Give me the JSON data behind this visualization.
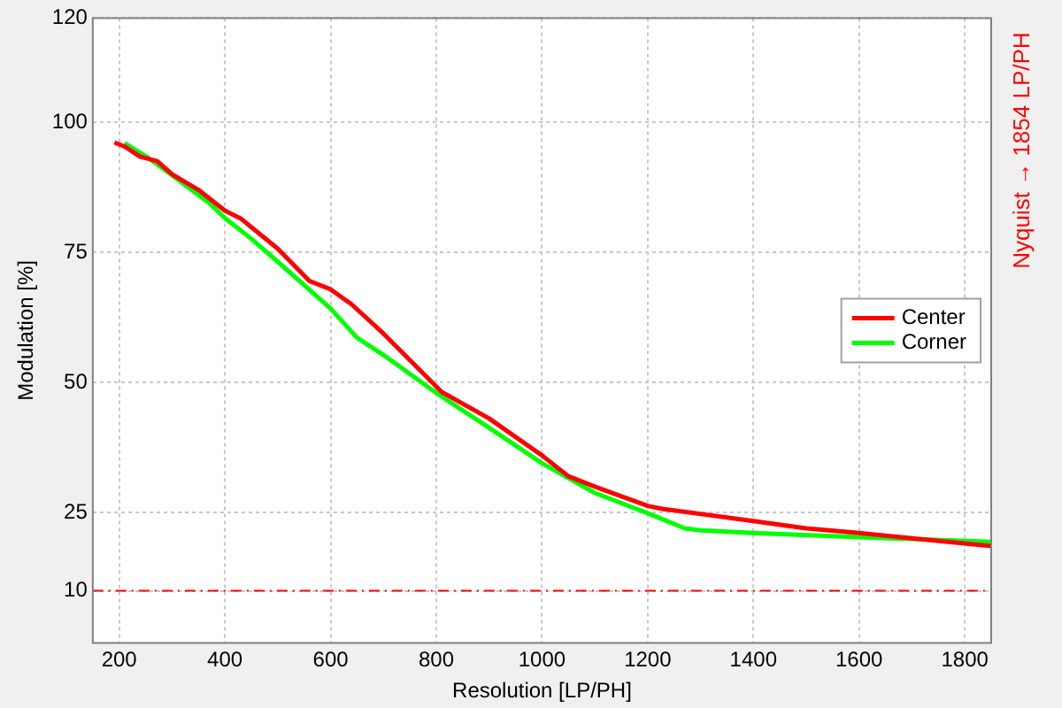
{
  "chart_data": {
    "type": "line",
    "xlabel": "Resolution [LP/PH]",
    "ylabel": "Modulation [%]",
    "xlim": [
      150,
      1850
    ],
    "xticks": [
      200,
      400,
      600,
      800,
      1000,
      1200,
      1400,
      1600,
      1800
    ],
    "ylim": [
      0,
      120
    ],
    "yticks": [
      10,
      25,
      50,
      75,
      100,
      120
    ],
    "grid": true,
    "legend": "right",
    "line_style": "solid",
    "marker": "none",
    "ref_lines": [
      {
        "axis": "y",
        "value": 10,
        "color": "#ff0000",
        "line_style": "dashed"
      }
    ],
    "annotations": [
      "Nyquist → 1854 LP/PH"
    ],
    "series": [
      {
        "name": "Center",
        "color": "#ff0000",
        "x": [
          191,
          211,
          239,
          272,
          300,
          350,
          400,
          430,
          500,
          560,
          600,
          640,
          700,
          810,
          900,
          1000,
          1050,
          1100,
          1200,
          1230,
          1400,
          1500,
          1600,
          1700,
          1850
        ],
        "values": [
          96.1,
          95.3,
          93.4,
          92.5,
          90,
          87,
          83,
          81.5,
          75.7,
          69.5,
          67.9,
          65,
          59.4,
          48.2,
          43.1,
          36,
          32,
          30,
          26.3,
          25.7,
          23.4,
          22,
          21.1,
          20.1,
          18.6
        ]
      },
      {
        "name": "Corner",
        "color": "#00ff00",
        "x": [
          210,
          250,
          300,
          330,
          370,
          400,
          450,
          500,
          600,
          650,
          700,
          800,
          900,
          1000,
          1100,
          1200,
          1270,
          1300,
          1400,
          1600,
          1850
        ],
        "values": [
          96,
          93.5,
          89.8,
          87.5,
          84.5,
          81.6,
          77.6,
          73.2,
          64.2,
          58.6,
          55.3,
          48,
          41.3,
          34.5,
          28.8,
          24.9,
          22,
          21.6,
          21.1,
          20.3,
          19.4
        ]
      }
    ]
  }
}
